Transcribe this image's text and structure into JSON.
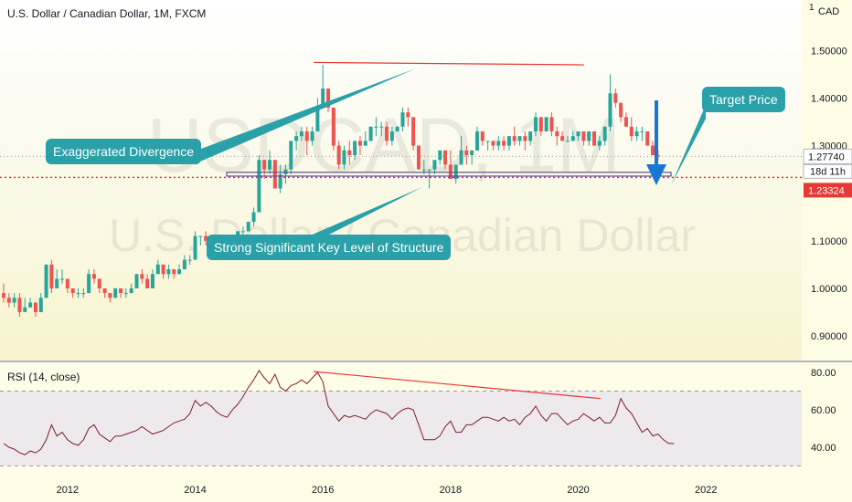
{
  "chart_data": [
    {
      "type": "candlestick",
      "title": "U.S. Dollar / Canadian Dollar, 1M, FXCM",
      "watermark_symbol": "USDCAD, 1M",
      "watermark_name": "U.S. Dollar / Canadian Dollar",
      "currency": "CAD",
      "ylim": [
        0.86,
        1.56
      ],
      "y_ticks": [
        "1.50000",
        "1.40000",
        "1.30000",
        "1.10000",
        "1.00000",
        "0.90000"
      ],
      "current_price": "1.27740",
      "countdown": "18d 11h",
      "key_level_price": "1.23324",
      "x_ticks": [
        "2012",
        "2014",
        "2016",
        "2018",
        "2020",
        "2022"
      ],
      "ohlc_monthly_from_2011_01": [
        [
          0.99,
          1.01,
          0.97,
          0.98
        ],
        [
          0.98,
          0.99,
          0.96,
          0.97
        ],
        [
          0.97,
          0.99,
          0.96,
          0.98
        ],
        [
          0.98,
          0.99,
          0.94,
          0.95
        ],
        [
          0.95,
          0.98,
          0.95,
          0.96
        ],
        [
          0.96,
          0.98,
          0.96,
          0.97
        ],
        [
          0.97,
          0.97,
          0.94,
          0.95
        ],
        [
          0.95,
          0.99,
          0.95,
          0.98
        ],
        [
          0.98,
          1.05,
          0.98,
          1.05
        ],
        [
          1.05,
          1.06,
          0.99,
          1.0
        ],
        [
          1.0,
          1.04,
          1.0,
          1.02
        ],
        [
          1.02,
          1.04,
          1.01,
          1.02
        ],
        [
          1.02,
          1.02,
          0.99,
          1.0
        ],
        [
          1.0,
          1.0,
          0.98,
          0.99
        ],
        [
          0.99,
          1.0,
          0.98,
          0.99
        ],
        [
          0.99,
          1.0,
          0.98,
          0.99
        ],
        [
          0.99,
          1.04,
          0.99,
          1.03
        ],
        [
          1.03,
          1.04,
          1.01,
          1.02
        ],
        [
          1.02,
          1.02,
          0.99,
          1.0
        ],
        [
          1.0,
          1.0,
          0.98,
          0.99
        ],
        [
          0.99,
          0.99,
          0.97,
          0.98
        ],
        [
          0.98,
          1.0,
          0.98,
          1.0
        ],
        [
          1.0,
          1.0,
          0.98,
          0.99
        ],
        [
          0.99,
          1.0,
          0.98,
          0.99
        ],
        [
          0.99,
          1.01,
          0.99,
          1.0
        ],
        [
          1.0,
          1.03,
          1.0,
          1.03
        ],
        [
          1.03,
          1.04,
          1.01,
          1.02
        ],
        [
          1.02,
          1.03,
          1.0,
          1.0
        ],
        [
          1.0,
          1.04,
          1.0,
          1.03
        ],
        [
          1.03,
          1.06,
          1.03,
          1.05
        ],
        [
          1.05,
          1.05,
          1.02,
          1.03
        ],
        [
          1.03,
          1.05,
          1.02,
          1.04
        ],
        [
          1.04,
          1.04,
          1.02,
          1.03
        ],
        [
          1.03,
          1.05,
          1.03,
          1.04
        ],
        [
          1.04,
          1.07,
          1.04,
          1.06
        ],
        [
          1.06,
          1.07,
          1.05,
          1.06
        ],
        [
          1.06,
          1.12,
          1.06,
          1.11
        ],
        [
          1.11,
          1.11,
          1.09,
          1.11
        ],
        [
          1.11,
          1.12,
          1.09,
          1.1
        ],
        [
          1.1,
          1.1,
          1.09,
          1.09
        ],
        [
          1.09,
          1.1,
          1.08,
          1.09
        ],
        [
          1.09,
          1.09,
          1.06,
          1.07
        ],
        [
          1.07,
          1.09,
          1.06,
          1.09
        ],
        [
          1.09,
          1.1,
          1.08,
          1.09
        ],
        [
          1.09,
          1.12,
          1.08,
          1.12
        ],
        [
          1.12,
          1.13,
          1.11,
          1.12
        ],
        [
          1.12,
          1.14,
          1.12,
          1.14
        ],
        [
          1.14,
          1.17,
          1.13,
          1.16
        ],
        [
          1.16,
          1.28,
          1.16,
          1.27
        ],
        [
          1.27,
          1.27,
          1.23,
          1.25
        ],
        [
          1.25,
          1.29,
          1.24,
          1.27
        ],
        [
          1.27,
          1.27,
          1.21,
          1.21
        ],
        [
          1.21,
          1.26,
          1.2,
          1.24
        ],
        [
          1.24,
          1.26,
          1.22,
          1.25
        ],
        [
          1.25,
          1.31,
          1.24,
          1.31
        ],
        [
          1.31,
          1.33,
          1.29,
          1.32
        ],
        [
          1.32,
          1.34,
          1.31,
          1.33
        ],
        [
          1.33,
          1.34,
          1.28,
          1.31
        ],
        [
          1.31,
          1.34,
          1.3,
          1.33
        ],
        [
          1.33,
          1.4,
          1.33,
          1.38
        ],
        [
          1.38,
          1.47,
          1.38,
          1.42
        ],
        [
          1.42,
          1.42,
          1.37,
          1.38
        ],
        [
          1.38,
          1.38,
          1.29,
          1.3
        ],
        [
          1.3,
          1.31,
          1.25,
          1.26
        ],
        [
          1.26,
          1.3,
          1.25,
          1.29
        ],
        [
          1.29,
          1.31,
          1.26,
          1.28
        ],
        [
          1.28,
          1.31,
          1.27,
          1.31
        ],
        [
          1.31,
          1.32,
          1.28,
          1.3
        ],
        [
          1.3,
          1.33,
          1.3,
          1.31
        ],
        [
          1.31,
          1.34,
          1.31,
          1.34
        ],
        [
          1.34,
          1.36,
          1.32,
          1.34
        ],
        [
          1.34,
          1.35,
          1.32,
          1.34
        ],
        [
          1.34,
          1.35,
          1.3,
          1.31
        ],
        [
          1.31,
          1.34,
          1.3,
          1.33
        ],
        [
          1.33,
          1.34,
          1.33,
          1.34
        ],
        [
          1.34,
          1.38,
          1.33,
          1.37
        ],
        [
          1.37,
          1.38,
          1.34,
          1.36
        ],
        [
          1.36,
          1.36,
          1.29,
          1.3
        ],
        [
          1.3,
          1.3,
          1.25,
          1.25
        ],
        [
          1.25,
          1.27,
          1.24,
          1.25
        ],
        [
          1.25,
          1.25,
          1.21,
          1.25
        ],
        [
          1.25,
          1.27,
          1.24,
          1.27
        ],
        [
          1.27,
          1.29,
          1.26,
          1.29
        ],
        [
          1.29,
          1.29,
          1.25,
          1.26
        ],
        [
          1.26,
          1.29,
          1.23,
          1.23
        ],
        [
          1.23,
          1.26,
          1.22,
          1.26
        ],
        [
          1.26,
          1.32,
          1.26,
          1.29
        ],
        [
          1.29,
          1.3,
          1.26,
          1.28
        ],
        [
          1.28,
          1.29,
          1.26,
          1.29
        ],
        [
          1.29,
          1.34,
          1.29,
          1.33
        ],
        [
          1.33,
          1.33,
          1.3,
          1.31
        ],
        [
          1.31,
          1.31,
          1.29,
          1.31
        ],
        [
          1.31,
          1.31,
          1.29,
          1.3
        ],
        [
          1.3,
          1.32,
          1.29,
          1.31
        ],
        [
          1.31,
          1.32,
          1.29,
          1.3
        ],
        [
          1.3,
          1.32,
          1.29,
          1.32
        ],
        [
          1.32,
          1.34,
          1.3,
          1.31
        ],
        [
          1.31,
          1.32,
          1.3,
          1.32
        ],
        [
          1.32,
          1.33,
          1.29,
          1.31
        ],
        [
          1.31,
          1.33,
          1.3,
          1.33
        ],
        [
          1.33,
          1.37,
          1.32,
          1.36
        ],
        [
          1.36,
          1.36,
          1.32,
          1.33
        ],
        [
          1.33,
          1.36,
          1.33,
          1.36
        ],
        [
          1.36,
          1.37,
          1.32,
          1.33
        ],
        [
          1.33,
          1.34,
          1.3,
          1.32
        ],
        [
          1.32,
          1.33,
          1.31,
          1.31
        ],
        [
          1.31,
          1.32,
          1.31,
          1.31
        ],
        [
          1.31,
          1.33,
          1.31,
          1.32
        ],
        [
          1.32,
          1.33,
          1.31,
          1.33
        ],
        [
          1.33,
          1.33,
          1.3,
          1.31
        ],
        [
          1.31,
          1.33,
          1.3,
          1.33
        ],
        [
          1.33,
          1.33,
          1.3,
          1.3
        ],
        [
          1.3,
          1.32,
          1.29,
          1.31
        ],
        [
          1.31,
          1.34,
          1.3,
          1.34
        ],
        [
          1.34,
          1.45,
          1.33,
          1.41
        ],
        [
          1.41,
          1.42,
          1.38,
          1.39
        ],
        [
          1.39,
          1.39,
          1.35,
          1.36
        ],
        [
          1.36,
          1.37,
          1.34,
          1.34
        ],
        [
          1.34,
          1.36,
          1.31,
          1.32
        ],
        [
          1.32,
          1.34,
          1.31,
          1.33
        ],
        [
          1.33,
          1.34,
          1.31,
          1.33
        ],
        [
          1.33,
          1.33,
          1.3,
          1.3
        ],
        [
          1.3,
          1.31,
          1.28,
          1.28
        ],
        [
          1.28,
          1.29,
          1.27,
          1.277
        ]
      ],
      "annotations": [
        {
          "text": "Exaggerated Divergence"
        },
        {
          "text": "Strong Significant Key Level of Structure"
        },
        {
          "text": "Target Price"
        }
      ],
      "colors": {
        "up": "#26a69a",
        "down": "#ef5350",
        "annotation": "#2aa0a8",
        "key_level": "#e53935",
        "price_line": "#5d4e9a"
      }
    },
    {
      "type": "line",
      "title": "RSI (14, close)",
      "ylim": [
        30,
        85
      ],
      "y_ticks": [
        "80.00",
        "60.00",
        "40.00"
      ],
      "band": [
        30,
        70
      ],
      "series": [
        {
          "values": [
            42,
            40,
            39,
            37,
            36,
            38,
            37,
            39,
            44,
            52,
            46,
            48,
            44,
            42,
            41,
            44,
            50,
            52,
            47,
            45,
            43,
            46,
            46,
            47,
            48,
            49,
            51,
            49,
            47,
            48,
            49,
            51,
            53,
            54,
            55,
            58,
            65,
            62,
            64,
            62,
            59,
            57,
            56,
            60,
            63,
            67,
            72,
            76,
            81,
            77,
            74,
            79,
            72,
            70,
            73,
            74,
            76,
            74,
            77,
            80,
            75,
            62,
            58,
            54,
            57,
            56,
            57,
            56,
            55,
            58,
            60,
            59,
            58,
            55,
            58,
            60,
            61,
            60,
            52,
            44,
            44,
            44,
            46,
            51,
            54,
            48,
            48,
            52,
            52,
            54,
            56,
            56,
            55,
            54,
            56,
            54,
            55,
            52,
            56,
            58,
            62,
            57,
            54,
            58,
            58,
            55,
            52,
            54,
            55,
            58,
            56,
            54,
            56,
            53,
            53,
            57,
            66,
            61,
            58,
            53,
            48,
            50,
            46,
            47,
            44,
            42,
            42
          ]
        }
      ],
      "colors": {
        "line": "#7b1f2a",
        "band": "#e3dcf0",
        "divergence": "#e53935"
      }
    }
  ]
}
